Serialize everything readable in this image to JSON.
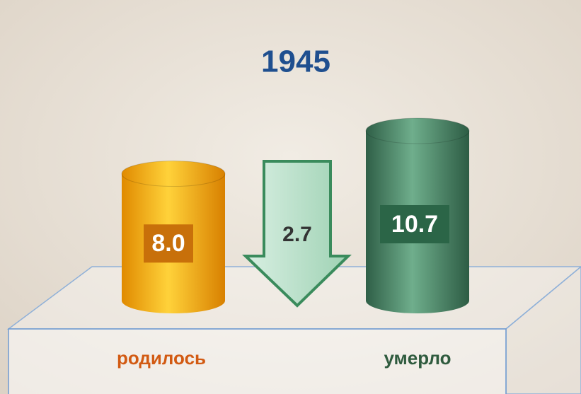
{
  "chart_data": {
    "type": "bar",
    "title": "1945",
    "categories": [
      "родилось",
      "умерло"
    ],
    "values": [
      8.0,
      10.7
    ],
    "value_labels": [
      "8.0",
      "10.7"
    ],
    "colors": [
      "#f2a400",
      "#417f60"
    ],
    "difference": 2.7
  }
}
